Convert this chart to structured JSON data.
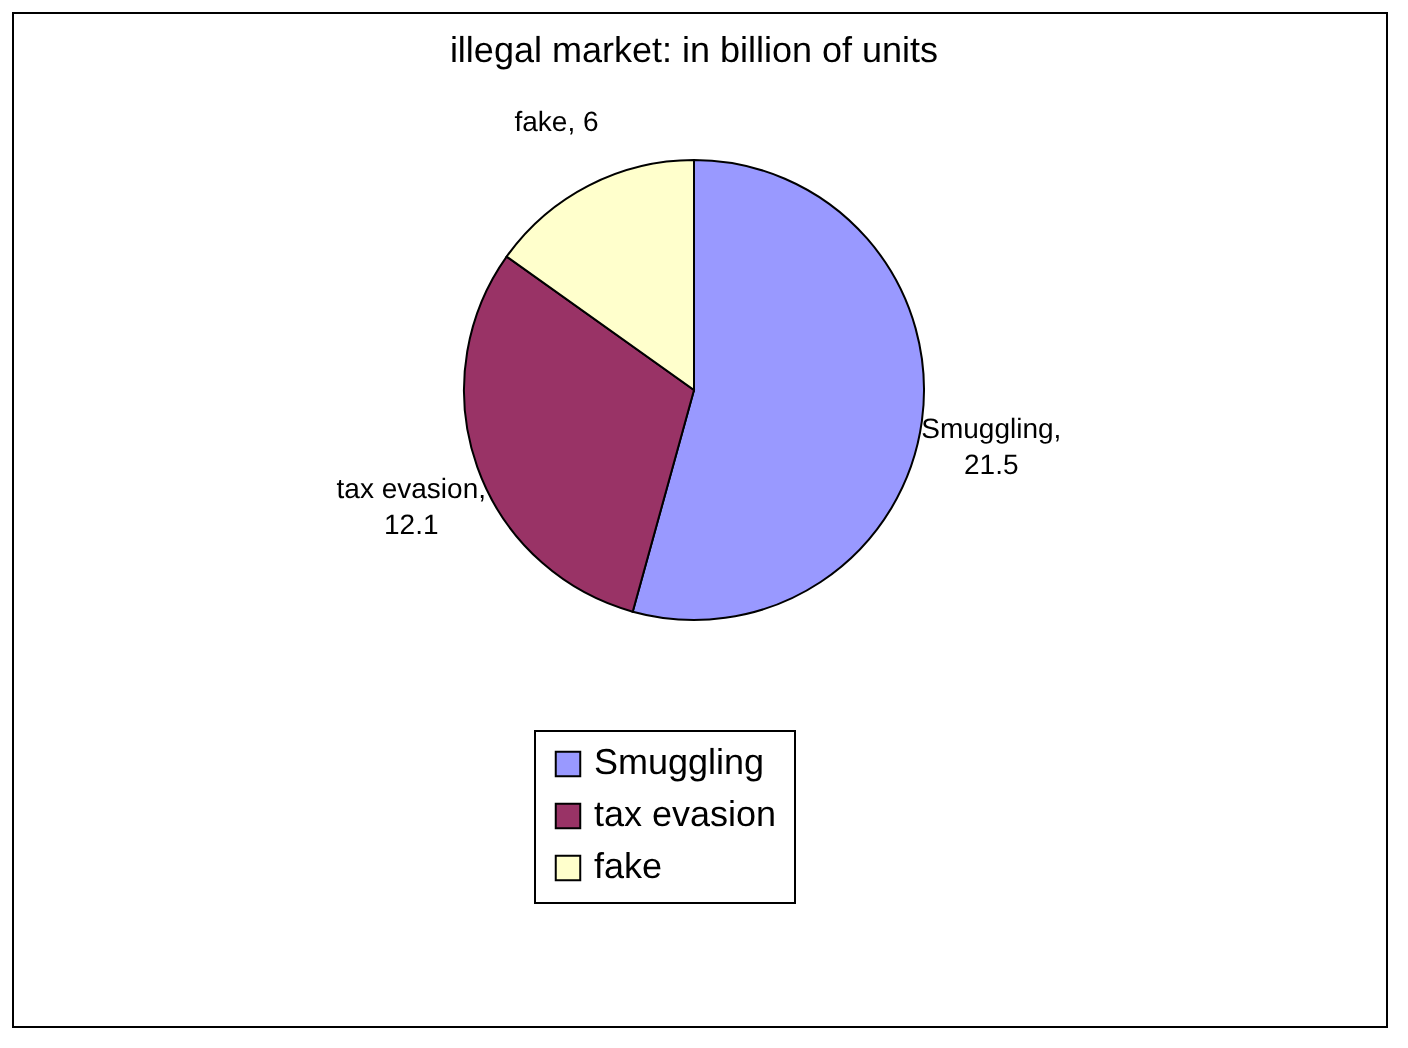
{
  "chart_data": {
    "type": "pie",
    "title": "illegal market: in billion of units",
    "categories": [
      "Smuggling",
      "tax evasion",
      "fake"
    ],
    "values": [
      21.5,
      12.1,
      6
    ],
    "colors": [
      "#9999ff",
      "#993366",
      "#ffffcc"
    ],
    "value_labels": [
      "Smuggling, 21.5",
      "tax evasion, 12.1",
      "fake, 6"
    ],
    "legend": "bottom"
  }
}
